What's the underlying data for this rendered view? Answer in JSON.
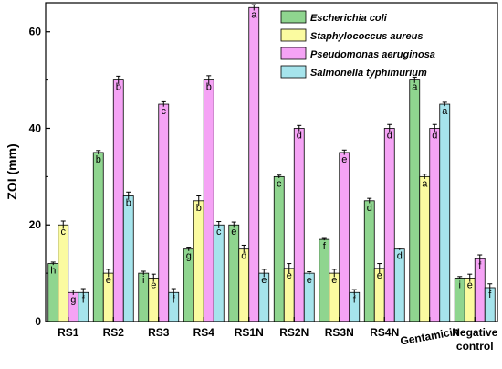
{
  "chart_data": {
    "type": "bar",
    "title": "",
    "xlabel": "",
    "ylabel": "ZOI (mm)",
    "ylim": [
      0,
      66
    ],
    "yticks": [
      0,
      20,
      40,
      60
    ],
    "legend_position": "top-right",
    "categories": [
      "RS1",
      "RS2",
      "RS3",
      "RS4",
      "RS1N",
      "RS2N",
      "RS3N",
      "RS4N",
      "Gentamicin",
      "Negative control"
    ],
    "category_lines": [
      [
        "RS1"
      ],
      [
        "RS2"
      ],
      [
        "RS3"
      ],
      [
        "RS4"
      ],
      [
        "RS1N"
      ],
      [
        "RS2N"
      ],
      [
        "RS3N"
      ],
      [
        "RS4N"
      ],
      [
        "Gentamicin"
      ],
      [
        "Negative",
        "control"
      ]
    ],
    "series": [
      {
        "name": "Escherichia coli",
        "color": "#8fd58f",
        "values": [
          12,
          35,
          10,
          15,
          20,
          30,
          17,
          25,
          50,
          9
        ],
        "errors": [
          0.3,
          0.4,
          0.4,
          0.4,
          0.6,
          0.3,
          0.2,
          0.5,
          0.6,
          0.3
        ],
        "letters": [
          "h",
          "b",
          "i",
          "g",
          "e",
          "c",
          "f",
          "d",
          "a",
          "i"
        ]
      },
      {
        "name": "Staphylococcus aureus",
        "color": "#fbfba0",
        "values": [
          20,
          10,
          9,
          25,
          15,
          11,
          10,
          11,
          30,
          9
        ],
        "errors": [
          0.8,
          0.8,
          0.8,
          1.0,
          0.8,
          1.0,
          0.8,
          1.0,
          0.5,
          0.8
        ],
        "letters": [
          "c",
          "e",
          "e",
          "b",
          "d",
          "e",
          "e",
          "e",
          "a",
          "e"
        ]
      },
      {
        "name": "Pseudomonas aeruginosa",
        "color": "#f5a3f5",
        "values": [
          6,
          50,
          45,
          50,
          65,
          40,
          35,
          40,
          40,
          13
        ],
        "errors": [
          0.5,
          0.8,
          0.5,
          0.9,
          0.6,
          0.6,
          0.5,
          0.8,
          0.8,
          0.8
        ],
        "letters": [
          "g",
          "b",
          "c",
          "b",
          "a",
          "d",
          "e",
          "d",
          "d",
          "f"
        ]
      },
      {
        "name": "Salmonella typhimurium",
        "color": "#a6e4ec",
        "values": [
          6,
          26,
          6,
          20,
          10,
          10,
          6,
          15,
          45,
          7
        ],
        "errors": [
          0.8,
          0.8,
          0.8,
          0.7,
          0.8,
          0.3,
          0.6,
          0.2,
          0.4,
          0.8
        ],
        "letters": [
          "f",
          "b",
          "f",
          "c",
          "e",
          "e",
          "f",
          "d",
          "a",
          "f"
        ]
      }
    ]
  }
}
